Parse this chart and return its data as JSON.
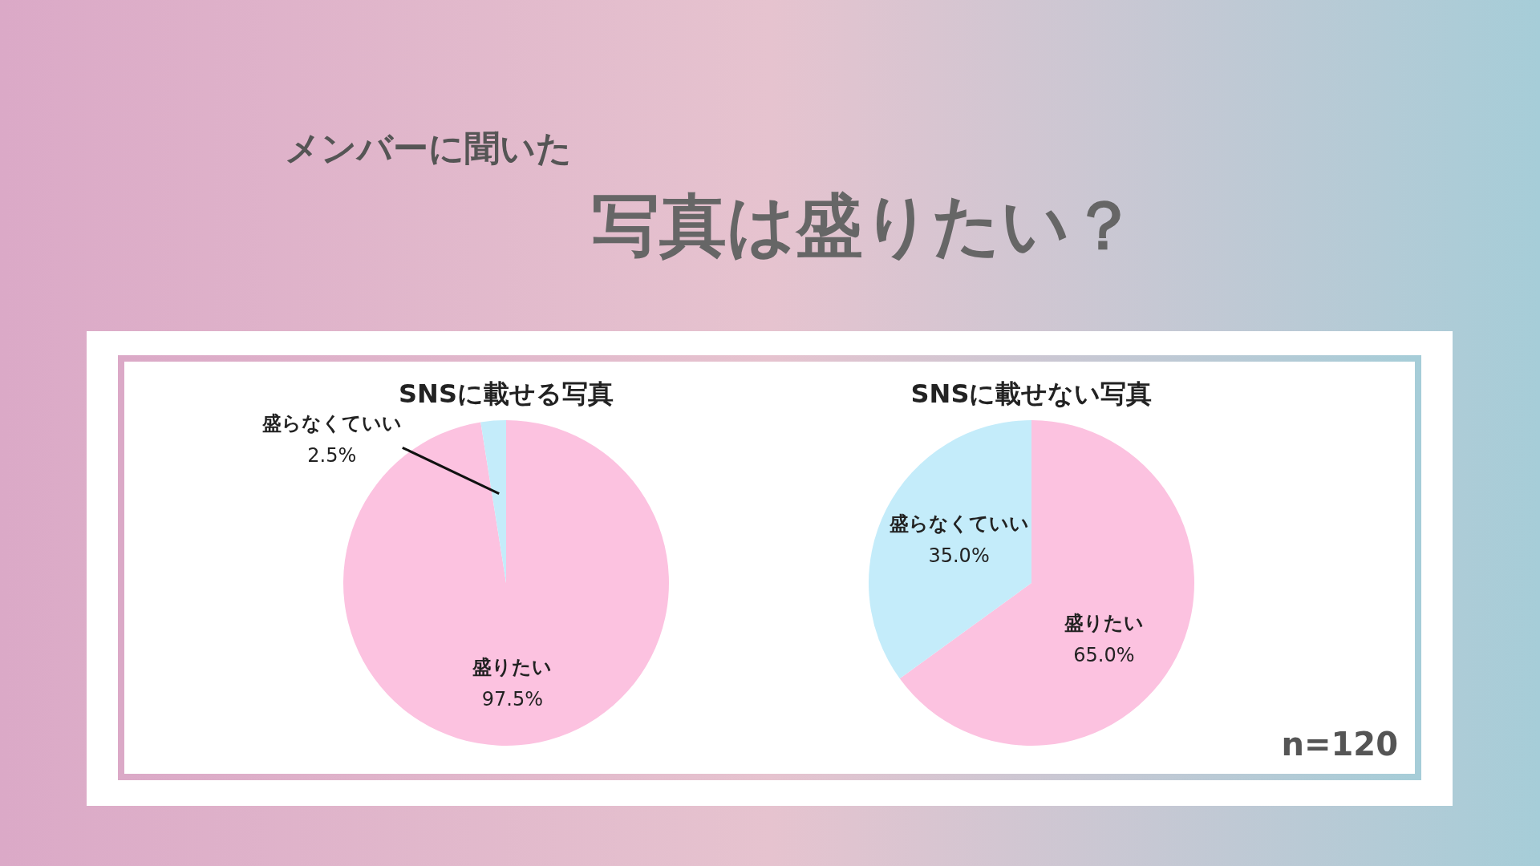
{
  "chart_data": [
    {
      "type": "other",
      "subtitle": "メンバーに聞いた",
      "title": "写真は盛りたい？"
    },
    {
      "type": "pie",
      "title": "SNSに載せる写真",
      "categories": [
        "盛りたい",
        "盛らなくていい"
      ],
      "values": [
        97.5,
        2.5
      ],
      "colors": [
        "#fcc2e0",
        "#c4ecfa"
      ],
      "value_labels": [
        "97.5%",
        "2.5%"
      ]
    },
    {
      "type": "pie",
      "title": "SNSに載せない写真",
      "categories": [
        "盛りたい",
        "盛らなくていい"
      ],
      "values": [
        65.0,
        35.0
      ],
      "colors": [
        "#fcc2e0",
        "#c4ecfa"
      ],
      "value_labels": [
        "65.0%",
        "35.0%"
      ],
      "annotations": [
        "n=120"
      ]
    }
  ]
}
